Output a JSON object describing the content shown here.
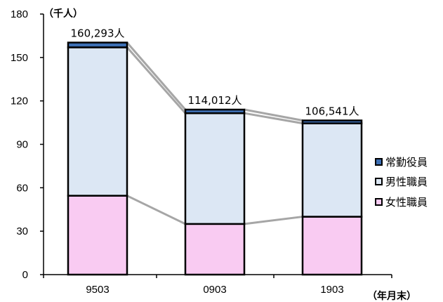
{
  "chart_data": {
    "type": "bar",
    "stacked": true,
    "categories": [
      "9503",
      "0903",
      "1903"
    ],
    "ylabel": "（千人）",
    "xlabel": "（年月末）",
    "ylim": [
      0,
      180
    ],
    "yticks": [
      0,
      30,
      60,
      90,
      120,
      150,
      180
    ],
    "grid": false,
    "legend_position": "right",
    "series": [
      {
        "name": "女性職員",
        "values": [
          54.5,
          35.0,
          40.0
        ],
        "color": "#f9cbf2"
      },
      {
        "name": "男性職員",
        "values": [
          102.5,
          76.5,
          64.5
        ],
        "color": "#dce7f4"
      },
      {
        "name": "常勤役員",
        "values": [
          3.3,
          2.5,
          2.0
        ],
        "color": "#3d6fb4"
      }
    ],
    "totals_labels": [
      "160,293人",
      "114,012人",
      "106,541人"
    ],
    "totals": [
      160.293,
      114.012,
      106.541
    ]
  }
}
